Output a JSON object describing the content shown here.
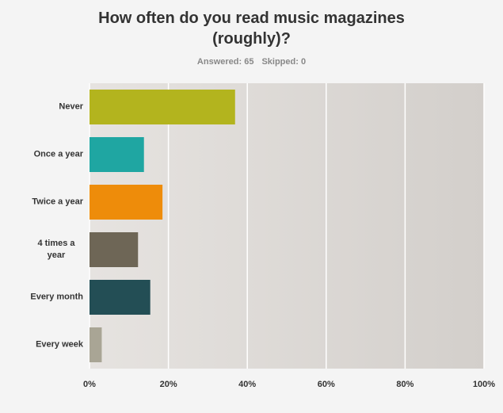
{
  "chart_data": {
    "type": "bar",
    "orientation": "horizontal",
    "title": "How often do you read music magazines (roughly)?",
    "answered": "Answered: 65",
    "skipped": "Skipped: 0",
    "categories": [
      "Never",
      "Once a year",
      "Twice a year",
      "4 times a year",
      "Every month",
      "Every week"
    ],
    "values": [
      36.9,
      13.8,
      18.5,
      12.3,
      15.4,
      3.1
    ],
    "colors": [
      "#b3b41e",
      "#1fa6a2",
      "#ee8c0a",
      "#6e6656",
      "#234e55",
      "#a9a595"
    ],
    "xlim": [
      0,
      100
    ],
    "xticks": [
      {
        "value": 0,
        "label": "0%"
      },
      {
        "value": 20,
        "label": "20%"
      },
      {
        "value": 40,
        "label": "40%"
      },
      {
        "value": 60,
        "label": "60%"
      },
      {
        "value": 80,
        "label": "80%"
      },
      {
        "value": 100,
        "label": "100%"
      }
    ],
    "grid": true
  }
}
